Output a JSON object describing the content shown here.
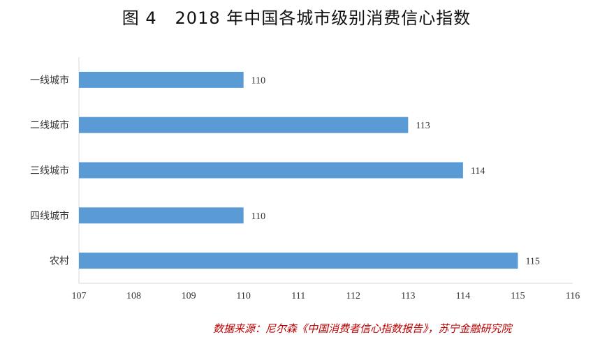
{
  "chart_data": {
    "type": "bar",
    "orientation": "horizontal",
    "title": "图 4   2018 年中国各城市级别消费信心指数",
    "categories": [
      "一线城市",
      "二线城市",
      "三线城市",
      "四线城市",
      "农村"
    ],
    "values": [
      110,
      113,
      114,
      110,
      115
    ],
    "data_labels": [
      "110",
      "113",
      "114",
      "110",
      "115"
    ],
    "xlim": [
      107,
      116
    ],
    "x_ticks": [
      "107",
      "108",
      "109",
      "110",
      "111",
      "112",
      "113",
      "114",
      "115",
      "116"
    ],
    "xlabel": "",
    "ylabel": "",
    "grid": false,
    "legend": "none",
    "bar_color": "#5B9BD5"
  },
  "source": {
    "text": "数据来源：尼尔森《中国消费者信心指数报告》，苏宁金融研究院",
    "color": "#C00000"
  },
  "colors": {
    "axis": "#D9D9D9",
    "text": "#333333"
  }
}
